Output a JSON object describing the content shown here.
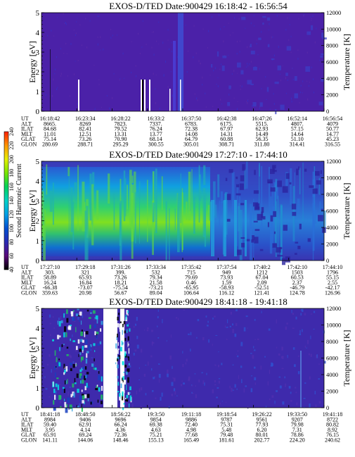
{
  "chart_data": [
    {
      "type": "heatmap",
      "title": "EXOS-D/TED   Date:900429   16:18:42 - 16:56:54",
      "ylabel": "Energy [eV]",
      "y2label": "Temperature [K]",
      "ylim": [
        0,
        5
      ],
      "y2lim": [
        0,
        12000
      ],
      "yticks": [
        "0",
        "1",
        "2",
        "3",
        "4",
        "5"
      ],
      "y2ticks": [
        "0",
        "2000",
        "4000",
        "6000",
        "8000",
        "10000",
        "12000"
      ],
      "rows": {
        "UT": [
          "16:18:42",
          "16:23:34",
          "16:28:22",
          "16:33:2",
          "16:37:50",
          "16:42:38",
          "16:47:26",
          "16:52:14",
          "16:56:54"
        ],
        "ALT": [
          "8665.",
          "8269",
          "7823.",
          "7337.",
          "6783.",
          "6175.",
          "5515.",
          "4807.",
          "4079"
        ],
        "ILAT": [
          "84.68",
          "82.41",
          "79.52",
          "76.24",
          "72.38",
          "67.97",
          "62.93",
          "57.15",
          "50.77"
        ],
        "MLT": [
          "11.01",
          "12.51",
          "13.31",
          "13.77",
          "14.08",
          "14.31",
          "14.49",
          "14.64",
          "14.77"
        ],
        "GLAT": [
          "75.14",
          "73.26",
          "70.90",
          "68.14",
          "64.79",
          "60.88",
          "56.35",
          "51.10",
          "45.23"
        ],
        "GLON": [
          "280.69",
          "288.71",
          "295.29",
          "300.55",
          "305.01",
          "308.71",
          "311.80",
          "314.41",
          "316.55"
        ]
      },
      "background_color": "#4b21a8"
    },
    {
      "type": "heatmap",
      "title": "EXOS-D/TED   Date:900429   17:27:10 - 17:44:10",
      "ylabel": "Energy [eV]",
      "y2label": "Temperature [K]",
      "ylim": [
        0,
        5
      ],
      "y2lim": [
        0,
        12000
      ],
      "yticks": [
        "0",
        "1",
        "2",
        "3",
        "4",
        "5"
      ],
      "y2ticks": [
        "0",
        "2000",
        "4000",
        "6000",
        "8000",
        "10000",
        "12000"
      ],
      "colorbar": {
        "label": "Second Harmonic Current",
        "ticks": [
          "40",
          "60",
          "80",
          "100",
          "120",
          "140",
          "160",
          "180",
          "200",
          "220",
          "240"
        ],
        "colors": [
          "#000000",
          "#5a0a7a",
          "#2a2ab4",
          "#0050d2",
          "#00a0e6",
          "#00d2c8",
          "#00d25a",
          "#78e600",
          "#e6f000",
          "#ff9600",
          "#ff1e00"
        ]
      },
      "rows": {
        "UT": [
          "17:27:10",
          "17:29:18",
          "17:31:26",
          "17:33:34",
          "17:35:42",
          "17:37:54",
          "17:40:2",
          "17:42:10",
          "17:44:10"
        ],
        "ALT": [
          "303.",
          "321",
          "399.",
          "532",
          "715",
          "949",
          "1212",
          "1503",
          "1796"
        ],
        "ILAT": [
          "58.89",
          "65.93",
          "73.26",
          "79.34",
          "79.69",
          "73.93",
          "67.04",
          "60.53",
          "55.15"
        ],
        "MLT": [
          "16.24",
          "16.84",
          "18.21",
          "21.58",
          "0.46",
          "1.59",
          "2.09",
          "2.37",
          "2.55"
        ],
        "GLAT": [
          "-66.38",
          "-73.07",
          "-75.54",
          "-73.21",
          "-65.95",
          "-58.93",
          "-52.51",
          "-46.79",
          "-42.17"
        ],
        "GLON": [
          "359.63",
          "20.98",
          "56.67",
          "89.04",
          "106.64",
          "116.12",
          "121.41",
          "124.78",
          "126.96"
        ]
      }
    },
    {
      "type": "heatmap",
      "title": "EXOS-D/TED   Date:900429   18:41:18 - 19:41:18",
      "ylabel": "Energy [eV]",
      "y2label": "Temperature [K]",
      "ylim": [
        0,
        5
      ],
      "y2lim": [
        0,
        12000
      ],
      "yticks": [
        "0",
        "1",
        "2",
        "3",
        "4",
        "5"
      ],
      "y2ticks": [
        "0",
        "2000",
        "4000",
        "6000",
        "8000",
        "10000",
        "12000"
      ],
      "rows": {
        "UT": [
          "18:41:18",
          "18:48:50",
          "18:56:22",
          "19:3:50",
          "19:11:18",
          "19:18:54",
          "19:26:22",
          "19:33:50",
          "19:41:18"
        ],
        "ALT": [
          "8984",
          "9406",
          "9696",
          "9854",
          "9886",
          "9787",
          "9561",
          "9207",
          "8722"
        ],
        "ILAT": [
          "59.40",
          "62.91",
          "66.24",
          "69.38",
          "72.40",
          "75.31",
          "77.93",
          "79.98",
          "80.82"
        ],
        "MLT": [
          "3.95",
          "4.14",
          "4.36",
          "4.63",
          "4.98",
          "5.48",
          "6.20",
          "7.31",
          "8.92"
        ],
        "GLAT": [
          "65.91",
          "69.24",
          "72.36",
          "75.21",
          "77.68",
          "79.48",
          "80.01",
          "78.86",
          "76.15"
        ],
        "GLON": [
          "141.11",
          "144.06",
          "148.46",
          "155.13",
          "165.49",
          "181.61",
          "202.77",
          "224.20",
          "240.62"
        ]
      }
    }
  ]
}
